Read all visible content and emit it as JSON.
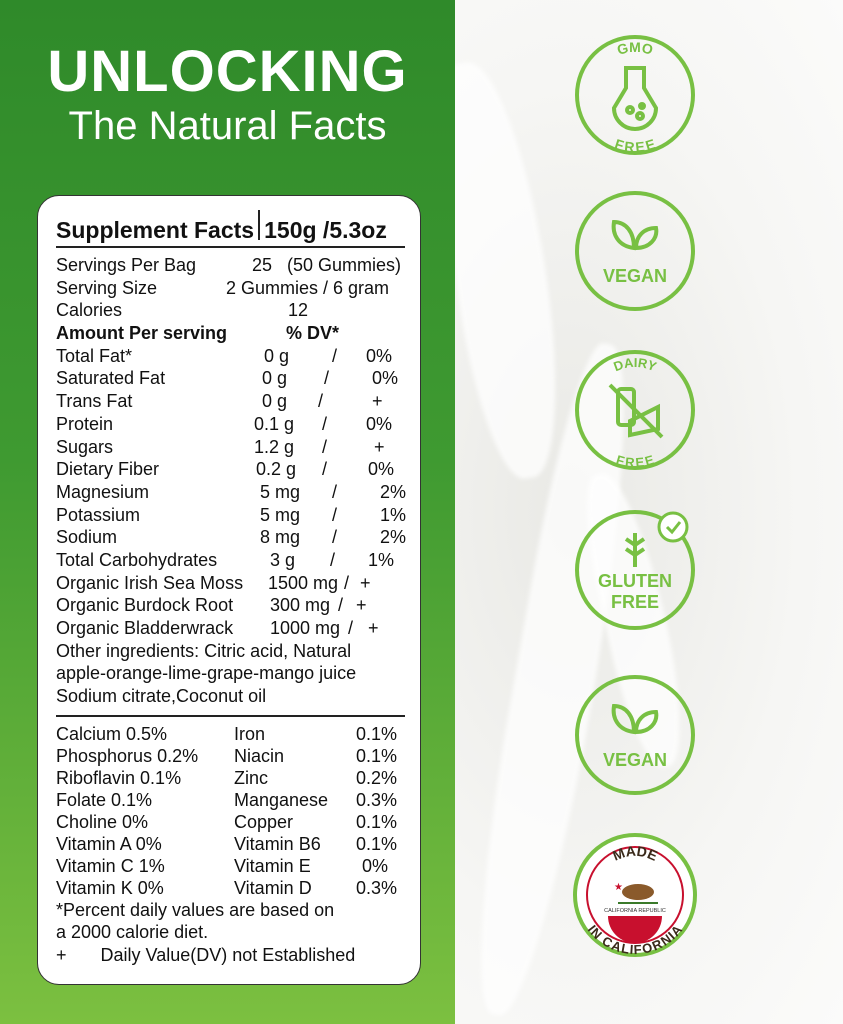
{
  "header": {
    "title": "UNLOCKING",
    "subtitle": "The Natural Facts"
  },
  "facts": {
    "title": "Supplement Facts",
    "size": "150g /5.3oz",
    "servings_label": "Servings Per Bag",
    "servings_value": "25   (50 Gummies)",
    "serving_size_label": "Serving Size",
    "serving_size_value": "2 Gummies / 6 gram",
    "calories_label": "Calories",
    "calories_value": "12",
    "amount_label": "Amount Per serving",
    "dv_label": "% DV*",
    "nutrients": [
      {
        "name": "Total Fat*",
        "amount": "0 g",
        "dv": "0%"
      },
      {
        "name": "Saturated Fat",
        "amount": "0 g",
        "dv": "0%"
      },
      {
        "name": "Trans Fat",
        "amount": "0 g",
        "dv": "+"
      },
      {
        "name": "Protein",
        "amount": "0.1 g",
        "dv": "0%"
      },
      {
        "name": "Sugars",
        "amount": "1.2 g",
        "dv": "+"
      },
      {
        "name": "Dietary Fiber",
        "amount": "0.2 g",
        "dv": "0%"
      },
      {
        "name": "Magnesium",
        "amount": "5 mg",
        "dv": "2%"
      },
      {
        "name": "Potassium",
        "amount": "5 mg",
        "dv": "1%"
      },
      {
        "name": "Sodium",
        "amount": "8 mg",
        "dv": "2%"
      },
      {
        "name": "Total Carbohydrates",
        "amount": "3 g",
        "dv": "1%"
      }
    ],
    "herbs": [
      {
        "name": "Organic Irish Sea Moss",
        "amount": "1500 mg",
        "dv": "+"
      },
      {
        "name": "Organic Burdock Root",
        "amount": "300 mg",
        "dv": "+"
      },
      {
        "name": "Organic Bladderwrack",
        "amount": "1000 mg",
        "dv": "+"
      }
    ],
    "other_ingredients": [
      "Other ingredients: Citric acid, Natural",
      "apple-orange-lime-grape-mango juice",
      "Sodium citrate,Coconut oil"
    ],
    "vitamins": [
      {
        "left": "Calcium 0.5%",
        "right": "Iron",
        "rv": "0.1%"
      },
      {
        "left": "Phosphorus 0.2%",
        "right": "Niacin",
        "rv": "0.1%"
      },
      {
        "left": "Riboflavin 0.1%",
        "right": "Zinc",
        "rv": "0.2%"
      },
      {
        "left": "Folate 0.1%",
        "right": "Manganese",
        "rv": "0.3%"
      },
      {
        "left": "Choline 0%",
        "right": "Copper",
        "rv": "0.1%"
      },
      {
        "left": "Vitamin A 0%",
        "right": "Vitamin B6",
        "rv": "0.1%"
      },
      {
        "left": "Vitamin C 1%",
        "right": "Vitamin E",
        "rv": "0%"
      },
      {
        "left": "Vitamin K 0%",
        "right": "Vitamin D",
        "rv": "0.3%"
      }
    ],
    "footnote1": "*Percent daily values are based on",
    "footnote2": "a 2000 calorie diet.",
    "footnote3_symbol": "+",
    "footnote3": "Daily Value(DV) not Established"
  },
  "badges": {
    "gmo_top": "GMO",
    "gmo_bottom": "FREE",
    "vegan": "VEGAN",
    "dairy_top": "DAIRY",
    "dairy_bottom": "FREE",
    "gluten1": "GLUTEN",
    "gluten2": "FREE",
    "vegan2": "VEGAN",
    "made_top": "MADE",
    "made_bottom": "IN CALIFORNIA",
    "republic": "CALIFORNIA REPUBLIC"
  },
  "colors": {
    "green": "#3f9a31",
    "badge_green": "#78c043",
    "ca_red": "#c8102e"
  }
}
